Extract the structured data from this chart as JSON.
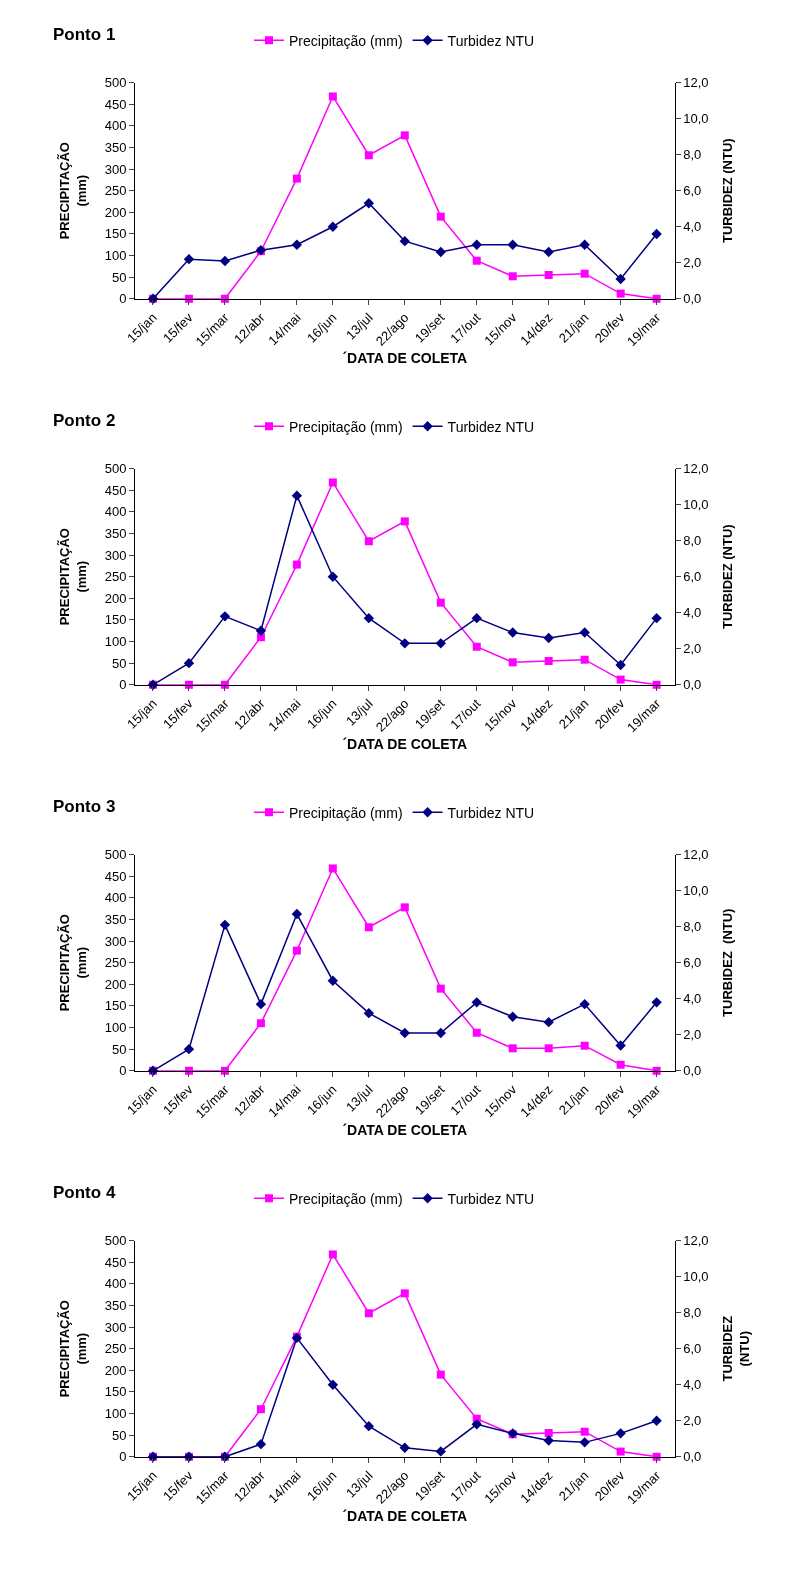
{
  "chart_data": [
    {
      "type": "line",
      "title": "Ponto 1",
      "xlabel": "´DATA DE COLETA",
      "ylabel": "PRECIPITAÇÃO\n(mm)",
      "y2label": "TURBIDEZ (NTU)",
      "categories": [
        "15/jan",
        "15/fev",
        "15/mar",
        "12/abr",
        "14/mai",
        "16/jun",
        "13/jul",
        "22/ago",
        "19/set",
        "17/out",
        "15/nov",
        "14/dez",
        "21/jan",
        "20/fev",
        "19/mar"
      ],
      "series": [
        {
          "name": "Precipitação (mm)",
          "color": "#ff00ff",
          "marker": "square",
          "values": [
            0,
            0,
            0,
            110,
            278,
            468,
            332,
            378,
            190,
            88,
            52,
            55,
            58,
            12,
            0
          ]
        },
        {
          "name": "Turbidez NTU",
          "color": "#000080",
          "marker": "diamond",
          "axis": "y2",
          "values": [
            0,
            2.2,
            2.1,
            2.7,
            3.0,
            4.0,
            5.3,
            3.2,
            2.6,
            3.0,
            3.0,
            2.6,
            3.0,
            1.1,
            3.6
          ]
        }
      ],
      "ylim": [
        0,
        500
      ],
      "yticks": [
        0,
        50,
        100,
        150,
        200,
        250,
        300,
        350,
        400,
        450,
        500
      ],
      "y2lim": [
        0,
        12
      ],
      "y2ticks": [
        {
          "value": 0,
          "label": "0,0"
        },
        {
          "value": 2,
          "label": "2,0"
        },
        {
          "value": 4,
          "label": "4,0"
        },
        {
          "value": 6,
          "label": "6,0"
        },
        {
          "value": 8,
          "label": "8,0"
        },
        {
          "value": 10,
          "label": "10,0"
        },
        {
          "value": 12,
          "label": "12,0"
        }
      ],
      "legend": "top"
    },
    {
      "type": "line",
      "title": "Ponto 2",
      "xlabel": "´DATA DE COLETA",
      "ylabel": "PRECIPITAÇÃO\n(mm)",
      "y2label": "TURBIDEZ (NTU)",
      "categories": [
        "15/jan",
        "15/fev",
        "15/mar",
        "12/abr",
        "14/mai",
        "16/jun",
        "13/jul",
        "22/ago",
        "19/set",
        "17/out",
        "15/nov",
        "14/dez",
        "21/jan",
        "20/fev",
        "19/mar"
      ],
      "series": [
        {
          "name": "Precipitação (mm)",
          "color": "#ff00ff",
          "marker": "square",
          "values": [
            0,
            0,
            0,
            110,
            278,
            468,
            332,
            378,
            190,
            88,
            52,
            55,
            58,
            12,
            0
          ]
        },
        {
          "name": "Turbidez NTU",
          "color": "#000080",
          "marker": "diamond",
          "axis": "y2",
          "values": [
            0,
            1.2,
            3.8,
            3.0,
            10.5,
            6.0,
            3.7,
            2.3,
            2.3,
            3.7,
            2.9,
            2.6,
            2.9,
            1.1,
            3.7
          ]
        }
      ],
      "ylim": [
        0,
        500
      ],
      "yticks": [
        0,
        50,
        100,
        150,
        200,
        250,
        300,
        350,
        400,
        450,
        500
      ],
      "y2lim": [
        0,
        12
      ],
      "y2ticks": [
        {
          "value": 0,
          "label": "0,0"
        },
        {
          "value": 2,
          "label": "2,0"
        },
        {
          "value": 4,
          "label": "4,0"
        },
        {
          "value": 6,
          "label": "6,0"
        },
        {
          "value": 8,
          "label": "8,0"
        },
        {
          "value": 10,
          "label": "10,0"
        },
        {
          "value": 12,
          "label": "12,0"
        }
      ],
      "legend": "top"
    },
    {
      "type": "line",
      "title": "Ponto 3",
      "xlabel": "´DATA DE COLETA",
      "ylabel": "PRECIPITAÇÃO\n(mm)",
      "y2label": "TURBIDEZ  (NTU)",
      "categories": [
        "15/jan",
        "15/fev",
        "15/mar",
        "12/abr",
        "14/mai",
        "16/jun",
        "13/jul",
        "22/ago",
        "19/set",
        "17/out",
        "15/nov",
        "14/dez",
        "21/jan",
        "20/fev",
        "19/mar"
      ],
      "series": [
        {
          "name": "Precipitação (mm)",
          "color": "#ff00ff",
          "marker": "square",
          "values": [
            0,
            0,
            0,
            110,
            278,
            468,
            332,
            378,
            190,
            88,
            52,
            52,
            58,
            14,
            0
          ]
        },
        {
          "name": "Turbidez NTU",
          "color": "#000080",
          "marker": "diamond",
          "axis": "y2",
          "values": [
            0,
            1.2,
            8.1,
            3.7,
            8.7,
            5.0,
            3.2,
            2.1,
            2.1,
            3.8,
            3.0,
            2.7,
            3.7,
            1.4,
            3.8
          ]
        }
      ],
      "ylim": [
        0,
        500
      ],
      "yticks": [
        0,
        50,
        100,
        150,
        200,
        250,
        300,
        350,
        400,
        450,
        500
      ],
      "y2lim": [
        0,
        12
      ],
      "y2ticks": [
        {
          "value": 0,
          "label": "0,0"
        },
        {
          "value": 2,
          "label": "2,0"
        },
        {
          "value": 4,
          "label": "4,0"
        },
        {
          "value": 6,
          "label": "6,0"
        },
        {
          "value": 8,
          "label": "8,0"
        },
        {
          "value": 10,
          "label": "10,0"
        },
        {
          "value": 12,
          "label": "12,0"
        }
      ],
      "legend": "top"
    },
    {
      "type": "line",
      "title": "Ponto 4",
      "xlabel": "´DATA DE COLETA",
      "ylabel": "PRECIPITAÇÃO\n(mm)",
      "y2label": "TURBIDEZ\n(NTU)",
      "categories": [
        "15/jan",
        "15/fev",
        "15/mar",
        "12/abr",
        "14/mai",
        "16/jun",
        "13/jul",
        "22/ago",
        "19/set",
        "17/out",
        "15/nov",
        "14/dez",
        "21/jan",
        "20/fev",
        "19/mar"
      ],
      "series": [
        {
          "name": "Precipitação (mm)",
          "color": "#ff00ff",
          "marker": "square",
          "values": [
            0,
            0,
            0,
            110,
            278,
            468,
            332,
            378,
            190,
            88,
            52,
            55,
            58,
            12,
            0
          ]
        },
        {
          "name": "Turbidez NTU",
          "color": "#000080",
          "marker": "diamond",
          "axis": "y2",
          "values": [
            0,
            0,
            0,
            0.7,
            6.6,
            4.0,
            1.7,
            0.5,
            0.3,
            1.8,
            1.3,
            0.9,
            0.8,
            1.3,
            2.0
          ]
        }
      ],
      "ylim": [
        0,
        500
      ],
      "yticks": [
        0,
        50,
        100,
        150,
        200,
        250,
        300,
        350,
        400,
        450,
        500
      ],
      "y2lim": [
        0,
        12
      ],
      "y2ticks": [
        {
          "value": 0,
          "label": "0,0"
        },
        {
          "value": 2,
          "label": "2,0"
        },
        {
          "value": 4,
          "label": "4,0"
        },
        {
          "value": 6,
          "label": "6,0"
        },
        {
          "value": 8,
          "label": "8,0"
        },
        {
          "value": 10,
          "label": "10,0"
        },
        {
          "value": 12,
          "label": "12,0"
        }
      ],
      "legend": "top"
    }
  ]
}
